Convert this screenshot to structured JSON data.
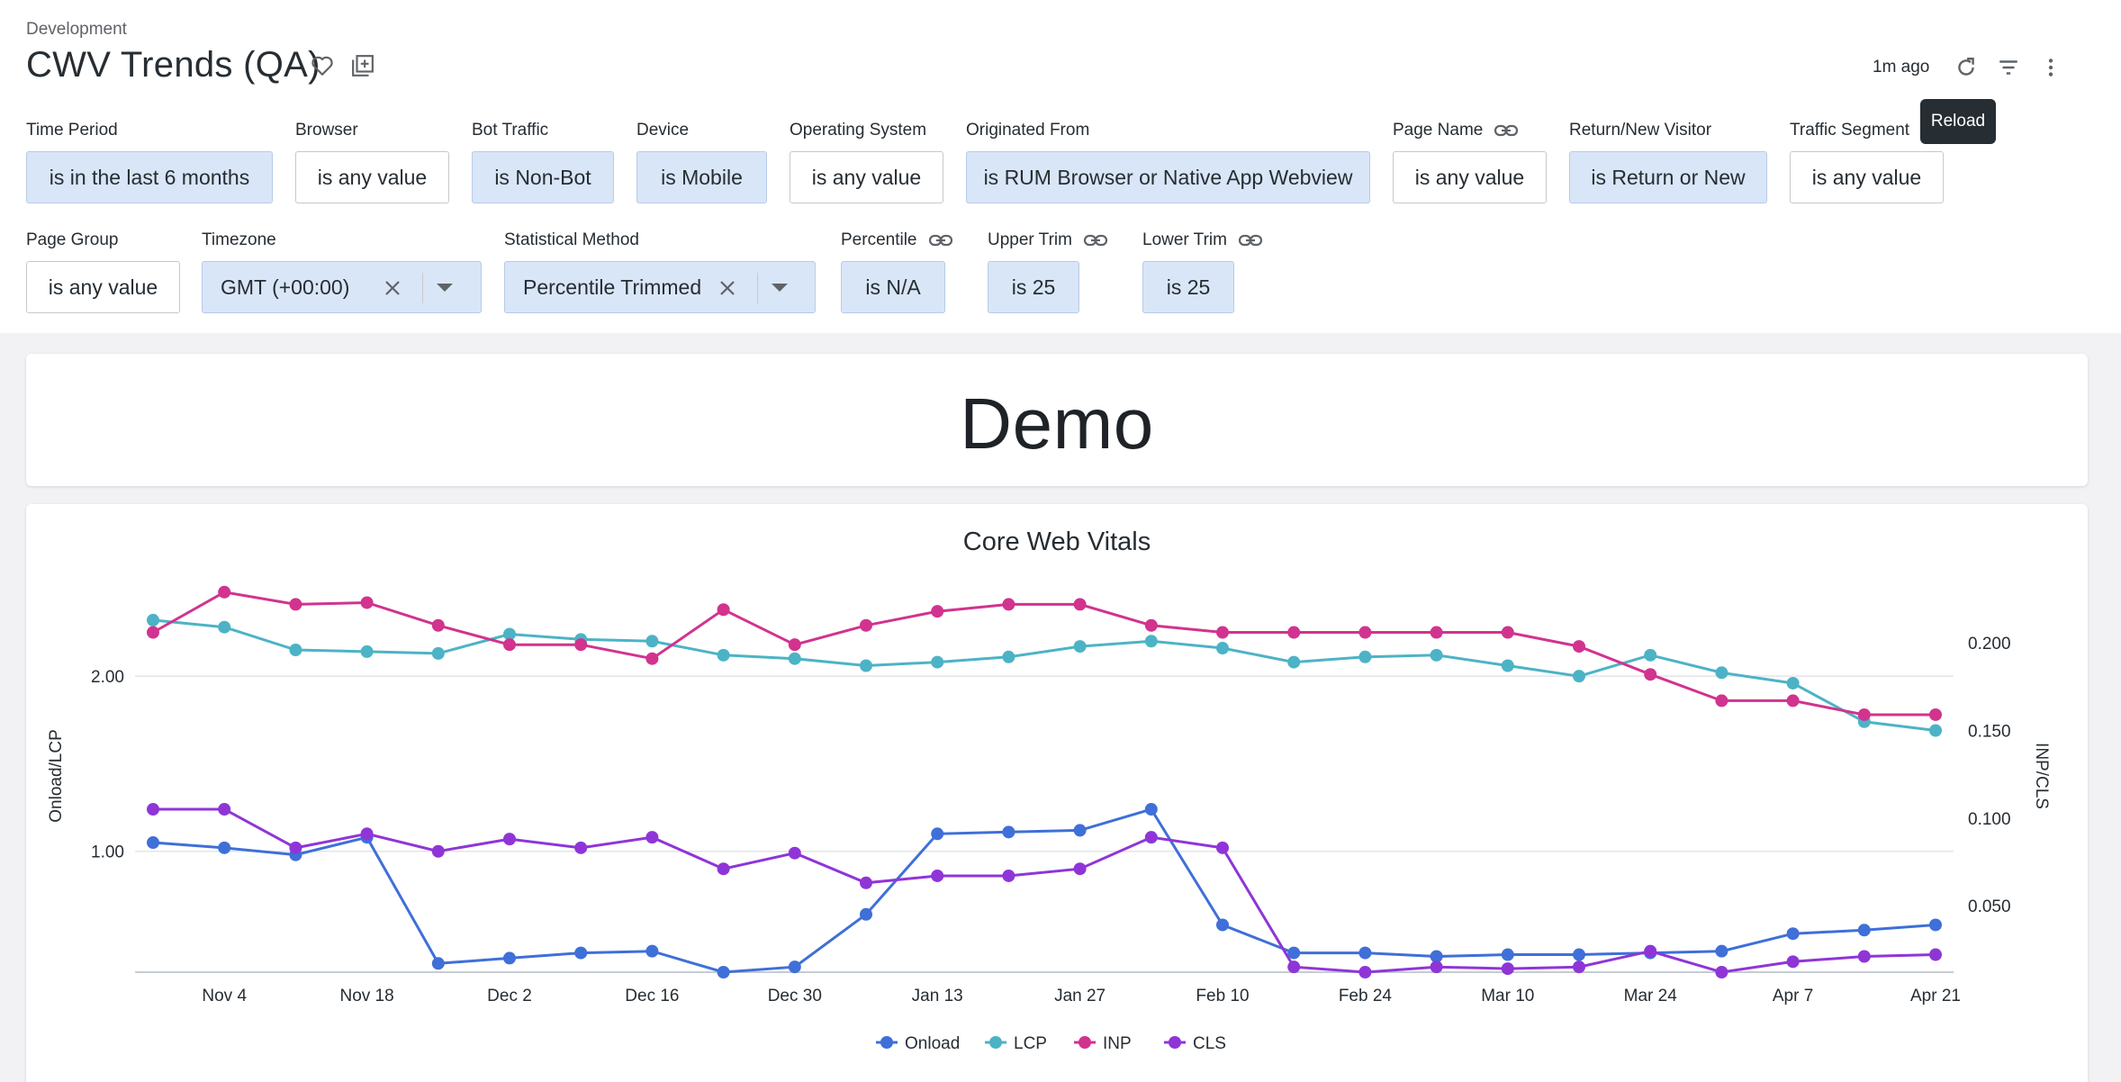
{
  "header": {
    "breadcrumb": "Development",
    "title": "CWV Trends (QA)",
    "updated": "1m ago",
    "tooltip": "Reload"
  },
  "filters": [
    {
      "label": "Time Period",
      "value": "is in the last 6 months",
      "active": true,
      "link": false
    },
    {
      "label": "Browser",
      "value": "is any value",
      "active": false,
      "link": false
    },
    {
      "label": "Bot Traffic",
      "value": "is Non-Bot",
      "active": true,
      "link": false
    },
    {
      "label": "Device",
      "value": "is Mobile",
      "active": true,
      "link": false
    },
    {
      "label": "Operating System",
      "value": "is any value",
      "active": false,
      "link": false
    },
    {
      "label": "Originated From",
      "value": "is RUM Browser or Native App Webview",
      "active": true,
      "link": false
    },
    {
      "label": "Page Name",
      "value": "is any value",
      "active": false,
      "link": true
    },
    {
      "label": "Return/New Visitor",
      "value": "is Return or New",
      "active": true,
      "link": false
    },
    {
      "label": "Traffic Segment",
      "value": "is any value",
      "active": false,
      "link": false
    },
    {
      "label": "Page Group",
      "value": "is any value",
      "active": false,
      "link": false
    },
    {
      "label": "Timezone",
      "value": "GMT (+00:00)",
      "active": true,
      "link": false,
      "select": true
    },
    {
      "label": "Statistical Method",
      "value": "Percentile Trimmed",
      "active": true,
      "link": false,
      "select": true
    },
    {
      "label": "Percentile",
      "value": "is N/A",
      "active": true,
      "link": true
    },
    {
      "label": "Upper Trim",
      "value": "is 25",
      "active": true,
      "link": true
    },
    {
      "label": "Lower Trim",
      "value": "is 25",
      "active": true,
      "link": true
    }
  ],
  "demo_tile": {
    "text": "Demo"
  },
  "colors": {
    "onload": "#3f6fd8",
    "lcp": "#4cb3c6",
    "inp": "#d1338f",
    "cls": "#8f35d8",
    "active_chip": "#d9e6f7"
  },
  "icons": [
    "heart-icon",
    "add-to-board-icon",
    "reload-icon",
    "filter-icon",
    "more-vert-icon",
    "link-icon",
    "clear-icon",
    "caret-down-icon"
  ],
  "chart_data": {
    "type": "line",
    "title": "Core Web Vitals",
    "y_left_label": "Onload/LCP",
    "y_right_label": "INP/CLS",
    "y_left_ticks": [
      "2.00",
      "1.00"
    ],
    "y_right_ticks": [
      "0.200",
      "0.150",
      "0.100",
      "0.050"
    ],
    "y_left_range": [
      0.31,
      2.52
    ],
    "y_right_range": [
      0.012,
      0.233
    ],
    "x_ticks": [
      "Nov 4",
      "Nov 18",
      "Dec 2",
      "Dec 16",
      "Dec 30",
      "Jan 13",
      "Jan 27",
      "Feb 10",
      "Feb 24",
      "Mar 10",
      "Mar 24",
      "Apr 7",
      "Apr 21"
    ],
    "x": [
      "Oct 28",
      "Nov 4",
      "Nov 11",
      "Nov 18",
      "Nov 25",
      "Dec 2",
      "Dec 9",
      "Dec 16",
      "Dec 23",
      "Dec 30",
      "Jan 6",
      "Jan 13",
      "Jan 20",
      "Jan 27",
      "Feb 3",
      "Feb 10",
      "Feb 17",
      "Feb 24",
      "Mar 3",
      "Mar 10",
      "Mar 17",
      "Mar 24",
      "Mar 31",
      "Apr 7",
      "Apr 14",
      "Apr 21"
    ],
    "legend_position": "bottom",
    "grid": true,
    "series": [
      {
        "name": "Onload",
        "axis": "left",
        "color": "#3f6fd8",
        "values": [
          1.05,
          1.02,
          0.98,
          1.08,
          0.36,
          0.39,
          0.42,
          0.43,
          0.31,
          0.34,
          0.64,
          1.1,
          1.11,
          1.12,
          1.24,
          0.58,
          0.42,
          0.42,
          0.4,
          0.41,
          0.41,
          0.42,
          0.43,
          0.53,
          0.55,
          0.58
        ]
      },
      {
        "name": "LCP",
        "axis": "left",
        "color": "#4cb3c6",
        "values": [
          2.32,
          2.28,
          2.15,
          2.14,
          2.13,
          2.24,
          2.21,
          2.2,
          2.12,
          2.1,
          2.06,
          2.08,
          2.11,
          2.17,
          2.2,
          2.16,
          2.08,
          2.11,
          2.12,
          2.06,
          2.0,
          2.12,
          2.02,
          1.96,
          1.74,
          1.69
        ]
      },
      {
        "name": "INP",
        "axis": "right",
        "color": "#d1338f",
        "values": [
          0.206,
          0.229,
          0.222,
          0.223,
          0.21,
          0.199,
          0.199,
          0.191,
          0.219,
          0.199,
          0.21,
          0.218,
          0.222,
          0.222,
          0.21,
          0.206,
          0.206,
          0.206,
          0.206,
          0.206,
          0.198,
          0.182,
          0.167,
          0.167,
          0.159,
          0.159
        ]
      },
      {
        "name": "CLS",
        "axis": "right",
        "color": "#8f35d8",
        "values": [
          0.105,
          0.105,
          0.083,
          0.091,
          0.081,
          0.088,
          0.083,
          0.089,
          0.071,
          0.08,
          0.063,
          0.067,
          0.067,
          0.071,
          0.089,
          0.083,
          0.015,
          0.012,
          0.015,
          0.014,
          0.015,
          0.024,
          0.012,
          0.018,
          0.021,
          0.022
        ]
      }
    ]
  }
}
